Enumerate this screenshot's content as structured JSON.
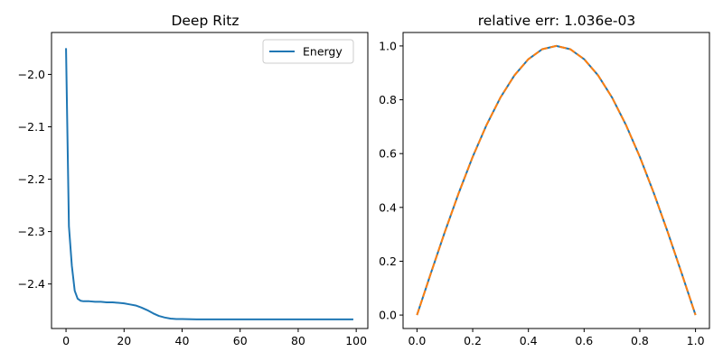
{
  "chart_data": [
    {
      "type": "line",
      "title": "Deep Ritz",
      "xlabel": "",
      "ylabel": "",
      "xlim": [
        -5,
        104
      ],
      "ylim": [
        -2.485,
        -1.92
      ],
      "xticks": [
        0,
        20,
        40,
        60,
        80,
        100
      ],
      "xtick_labels": [
        "0",
        "20",
        "40",
        "60",
        "80",
        "100"
      ],
      "yticks": [
        -2.4,
        -2.3,
        -2.2,
        -2.1,
        -2.0
      ],
      "ytick_labels": [
        "−2.4",
        "−2.3",
        "−2.2",
        "−2.1",
        "−2.0"
      ],
      "grid": false,
      "legend": "upper-right",
      "series": [
        {
          "name": "Energy",
          "color": "#1f77b4",
          "style": "solid",
          "x": [
            0,
            1,
            2,
            3,
            4,
            5,
            6,
            8,
            10,
            12,
            14,
            16,
            18,
            20,
            22,
            24,
            26,
            28,
            30,
            32,
            34,
            36,
            38,
            40,
            45,
            50,
            60,
            70,
            80,
            90,
            99
          ],
          "y": [
            -1.95,
            -2.29,
            -2.365,
            -2.413,
            -2.428,
            -2.432,
            -2.433,
            -2.433,
            -2.434,
            -2.434,
            -2.435,
            -2.435,
            -2.436,
            -2.437,
            -2.439,
            -2.441,
            -2.445,
            -2.45,
            -2.456,
            -2.461,
            -2.464,
            -2.466,
            -2.467,
            -2.467,
            -2.4675,
            -2.4675,
            -2.4675,
            -2.4675,
            -2.4675,
            -2.4675,
            -2.4675
          ]
        }
      ]
    },
    {
      "type": "line",
      "title": "relative err: 1.036e-03",
      "xlabel": "",
      "ylabel": "",
      "xlim": [
        -0.05,
        1.05
      ],
      "ylim": [
        -0.05,
        1.05
      ],
      "xticks": [
        0.0,
        0.2,
        0.4,
        0.6,
        0.8,
        1.0
      ],
      "xtick_labels": [
        "0.0",
        "0.2",
        "0.4",
        "0.6",
        "0.8",
        "1.0"
      ],
      "yticks": [
        0.0,
        0.2,
        0.4,
        0.6,
        0.8,
        1.0
      ],
      "ytick_labels": [
        "0.0",
        "0.2",
        "0.4",
        "0.6",
        "0.8",
        "1.0"
      ],
      "grid": false,
      "series": [
        {
          "color": "#1f77b4",
          "style": "solid",
          "x": [
            0,
            0.05,
            0.1,
            0.15,
            0.2,
            0.25,
            0.3,
            0.35,
            0.4,
            0.45,
            0.5,
            0.55,
            0.6,
            0.65,
            0.7,
            0.75,
            0.8,
            0.85,
            0.9,
            0.95,
            1.0
          ],
          "y": [
            0,
            0.156,
            0.309,
            0.454,
            0.588,
            0.707,
            0.809,
            0.891,
            0.951,
            0.988,
            1.0,
            0.988,
            0.951,
            0.891,
            0.809,
            0.707,
            0.588,
            0.454,
            0.309,
            0.156,
            0
          ]
        },
        {
          "color": "#ff7f0e",
          "style": "dashed",
          "x": [
            0,
            0.05,
            0.1,
            0.15,
            0.2,
            0.25,
            0.3,
            0.35,
            0.4,
            0.45,
            0.5,
            0.55,
            0.6,
            0.65,
            0.7,
            0.75,
            0.8,
            0.85,
            0.9,
            0.95,
            1.0
          ],
          "y": [
            0,
            0.156,
            0.309,
            0.454,
            0.588,
            0.707,
            0.809,
            0.891,
            0.951,
            0.988,
            1.0,
            0.988,
            0.951,
            0.891,
            0.809,
            0.707,
            0.588,
            0.454,
            0.309,
            0.156,
            0
          ]
        }
      ]
    }
  ]
}
